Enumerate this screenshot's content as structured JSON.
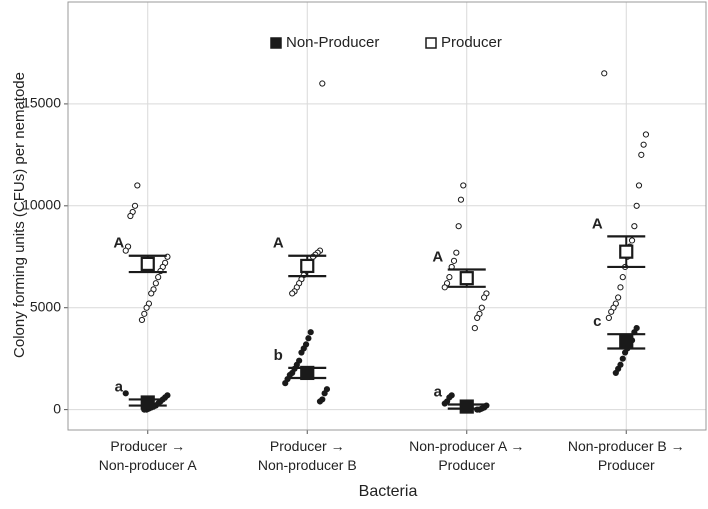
{
  "chart_data": {
    "type": "dot",
    "y_label": "Colony forming units (CFUs) per nematode",
    "x_label": "Bacteria",
    "categories": [
      "Producer → Non-producer A",
      "Producer → Non-producer B",
      "Non-producer A → Producer",
      "Non-producer B → Producer"
    ],
    "ylim": [
      -1000,
      20000
    ],
    "yticks": [
      0,
      5000,
      10000,
      15000
    ],
    "grid": true,
    "legend": "top",
    "series": [
      {
        "name": "Non-Producer",
        "color": "#1a1a1a",
        "marker": "filled",
        "values": [
          350,
          1800,
          150,
          3350
        ],
        "errors": [
          150,
          250,
          100,
          350
        ],
        "letters": [
          "a",
          "b",
          "a",
          "c"
        ],
        "points": [
          [
            800,
            700,
            600,
            500,
            400,
            300,
            200,
            150,
            100,
            50,
            0,
            0
          ],
          [
            3800,
            3500,
            3200,
            3000,
            2800,
            2400,
            2200,
            2000,
            1800,
            1700,
            1500,
            1300,
            1000,
            800,
            500,
            400
          ],
          [
            700,
            600,
            400,
            300,
            200,
            100,
            50,
            0,
            0
          ],
          [
            4000,
            3800,
            3400,
            3200,
            3000,
            2800,
            2500,
            2200,
            2000,
            1800
          ]
        ]
      },
      {
        "name": "Producer",
        "color": "#1a1a1a",
        "marker": "open",
        "values": [
          7150,
          7050,
          6450,
          7750
        ],
        "errors": [
          400,
          500,
          425,
          750
        ],
        "letters": [
          "A",
          "A",
          "A",
          "A"
        ],
        "points": [
          [
            11000,
            10000,
            9700,
            9500,
            8000,
            7800,
            7500,
            7200,
            7000,
            6800,
            6500,
            6200,
            5900,
            5700,
            5200,
            5000,
            4700,
            4400
          ],
          [
            16000,
            7800,
            7700,
            7600,
            7500,
            7200,
            7000,
            6800,
            6600,
            6400,
            6200,
            6000,
            5800,
            5700
          ],
          [
            11000,
            10300,
            9000,
            7700,
            7300,
            7000,
            6500,
            6200,
            6000,
            5700,
            5500,
            5000,
            4700,
            4500,
            4000
          ],
          [
            16500,
            13500,
            13000,
            12500,
            11000,
            10000,
            9000,
            8300,
            8000,
            7500,
            7000,
            6500,
            6000,
            5500,
            5200,
            5000,
            4800,
            4500
          ]
        ]
      }
    ]
  }
}
